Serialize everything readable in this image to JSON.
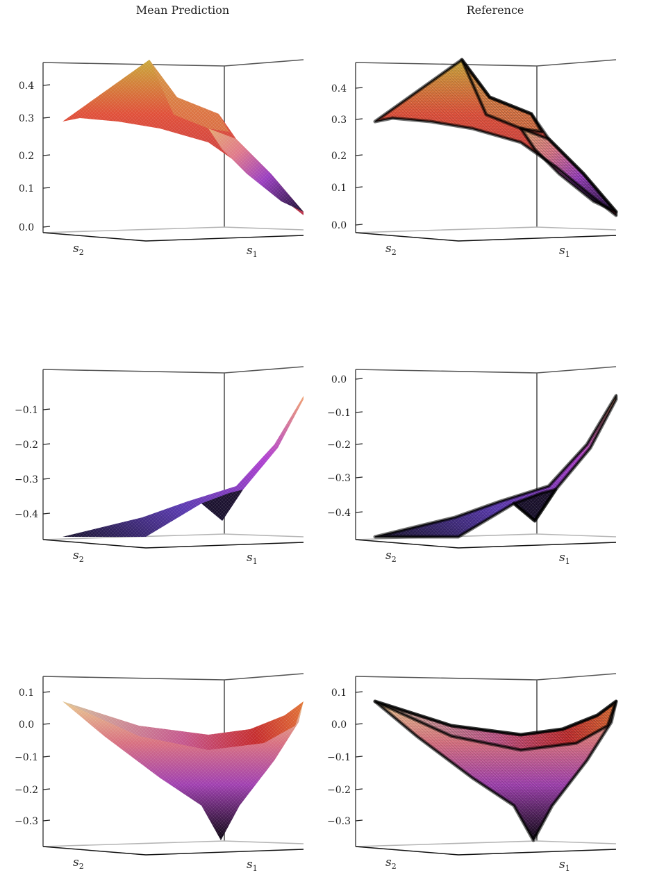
{
  "columns": [
    "Mean Prediction",
    "Reference"
  ],
  "axis_labels": {
    "x": "s",
    "x_sub": "1",
    "y": "s",
    "y_sub": "2"
  },
  "colors": {
    "frame": "#555555",
    "floor": "#b5b5b5",
    "gradient": [
      "#0a0514",
      "#3a2a6e",
      "#7a3fd0",
      "#c24fd6",
      "#e8505b",
      "#f07a4a",
      "#c9a83a"
    ],
    "wire": "#000000"
  },
  "chart_data": [
    {
      "type": "surface",
      "panel": "Mean Prediction",
      "row": 1,
      "zlim": [
        0.0,
        0.45
      ],
      "z_ticks": [
        "0.0",
        "0.1",
        "0.2",
        "0.3",
        "0.4"
      ],
      "xlabel": "s1",
      "ylabel": "s2",
      "colormap": "sunset",
      "reference_wireframe": false
    },
    {
      "type": "surface",
      "panel": "Reference",
      "row": 1,
      "zlim": [
        0.0,
        0.45
      ],
      "z_ticks": [
        "0.0",
        "0.1",
        "0.2",
        "0.3",
        "0.4"
      ],
      "xlabel": "s1",
      "ylabel": "s2",
      "colormap": "sunset",
      "reference_wireframe": true
    },
    {
      "type": "surface",
      "panel": "Mean Prediction",
      "row": 2,
      "zlim": [
        -0.47,
        0.0
      ],
      "z_ticks": [
        "−0.1",
        "−0.2",
        "−0.3",
        "−0.4"
      ],
      "xlabel": "s1",
      "ylabel": "s2",
      "colormap": "sunset",
      "reference_wireframe": false
    },
    {
      "type": "surface",
      "panel": "Reference",
      "row": 2,
      "zlim": [
        -0.47,
        0.0
      ],
      "z_ticks": [
        "0.0",
        "−0.1",
        "−0.2",
        "−0.3",
        "−0.4"
      ],
      "xlabel": "s1",
      "ylabel": "s2",
      "colormap": "sunset",
      "reference_wireframe": true
    },
    {
      "type": "surface",
      "panel": "Mean Prediction",
      "row": 3,
      "zlim": [
        -0.38,
        0.12
      ],
      "z_ticks": [
        "0.1",
        "0.0",
        "−0.1",
        "−0.2",
        "−0.3"
      ],
      "xlabel": "s1",
      "ylabel": "s2",
      "colormap": "sunset",
      "reference_wireframe": false
    },
    {
      "type": "surface",
      "panel": "Reference",
      "row": 3,
      "zlim": [
        -0.38,
        0.12
      ],
      "z_ticks": [
        "0.1",
        "0.0",
        "−0.1",
        "−0.2",
        "−0.3"
      ],
      "xlabel": "s1",
      "ylabel": "s2",
      "colormap": "sunset",
      "reference_wireframe": true
    }
  ]
}
